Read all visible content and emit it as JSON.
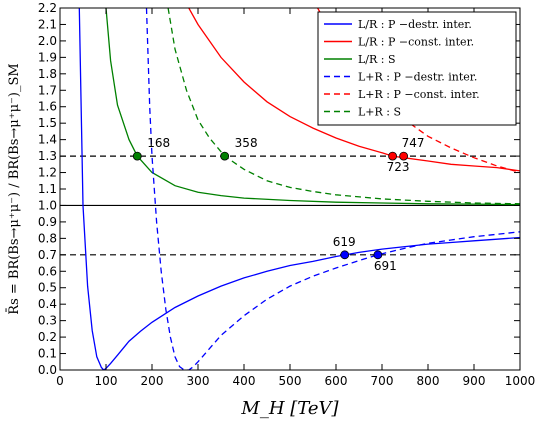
{
  "chart_data": {
    "type": "line",
    "xlabel": "M_H  [TeV]",
    "ylabel": "R̄s = BR(Bs→μ⁺μ⁻) / BR(Bs→μ⁺μ⁻)_SM",
    "xlim": [
      0,
      1000
    ],
    "ylim": [
      0.0,
      2.2
    ],
    "x_ticks": [
      "0",
      "100",
      "200",
      "300",
      "400",
      "500",
      "600",
      "700",
      "800",
      "900",
      "1000"
    ],
    "y_ticks": [
      "0.0",
      "0.1",
      "0.2",
      "0.3",
      "0.4",
      "0.5",
      "0.6",
      "0.7",
      "0.8",
      "0.9",
      "1.0",
      "1.1",
      "1.2",
      "1.3",
      "1.4",
      "1.5",
      "1.6",
      "1.7",
      "1.8",
      "1.9",
      "2.0",
      "2.1",
      "2.2"
    ],
    "legend_position": "top-right",
    "reference_lines": [
      {
        "y": 1.3,
        "style": "dashed",
        "color": "#000000"
      },
      {
        "y": 1.0,
        "style": "solid",
        "color": "#000000"
      },
      {
        "y": 0.7,
        "style": "dashed",
        "color": "#000000"
      }
    ],
    "series": [
      {
        "name": "L/R : P −destr. inter.",
        "color": "#0000ff",
        "dash": "solid",
        "x": [
          42,
          50,
          60,
          70,
          80,
          90,
          95,
          100,
          110,
          125,
          150,
          175,
          200,
          250,
          300,
          350,
          400,
          450,
          500,
          550,
          600,
          650,
          700,
          750,
          800,
          850,
          900,
          950,
          1000
        ],
        "y": [
          2.2,
          1.0,
          0.51,
          0.24,
          0.08,
          0.015,
          0.0,
          0.01,
          0.04,
          0.09,
          0.175,
          0.235,
          0.29,
          0.38,
          0.45,
          0.51,
          0.56,
          0.6,
          0.635,
          0.66,
          0.69,
          0.715,
          0.735,
          0.75,
          0.765,
          0.775,
          0.785,
          0.795,
          0.805
        ]
      },
      {
        "name": "L/R : P −const. inter.",
        "color": "#ff0000",
        "dash": "solid",
        "x": [
          280,
          300,
          350,
          400,
          450,
          500,
          550,
          600,
          650,
          700,
          723,
          747,
          800,
          850,
          900,
          950,
          1000
        ],
        "y": [
          2.2,
          2.1,
          1.9,
          1.75,
          1.63,
          1.54,
          1.47,
          1.41,
          1.36,
          1.32,
          1.3,
          1.29,
          1.27,
          1.25,
          1.24,
          1.23,
          1.21
        ]
      },
      {
        "name": "L/R : S",
        "color": "#008000",
        "dash": "solid",
        "x": [
          100,
          110,
          125,
          150,
          168,
          200,
          250,
          300,
          350,
          400,
          500,
          600,
          700,
          800,
          900,
          1000
        ],
        "y": [
          2.2,
          1.88,
          1.61,
          1.4,
          1.3,
          1.2,
          1.12,
          1.08,
          1.06,
          1.045,
          1.03,
          1.02,
          1.015,
          1.01,
          1.008,
          1.005
        ]
      },
      {
        "name": "L+R : P −destr. inter.",
        "color": "#0000ff",
        "dash": "dashed",
        "x": [
          188,
          195,
          200,
          210,
          220,
          230,
          240,
          250,
          260,
          270,
          280,
          290,
          300,
          325,
          350,
          400,
          450,
          500,
          550,
          600,
          650,
          691,
          750,
          800,
          850,
          900,
          950,
          1000
        ],
        "y": [
          2.2,
          1.6,
          1.3,
          0.9,
          0.6,
          0.37,
          0.2,
          0.08,
          0.02,
          0.0,
          0.0,
          0.02,
          0.05,
          0.13,
          0.21,
          0.33,
          0.43,
          0.51,
          0.57,
          0.62,
          0.665,
          0.7,
          0.74,
          0.77,
          0.79,
          0.81,
          0.825,
          0.84
        ]
      },
      {
        "name": "L+R : P −const. inter.",
        "color": "#ff0000",
        "dash": "dashed",
        "x": [
          560,
          600,
          650,
          700,
          750,
          800,
          850,
          900,
          950,
          1000
        ],
        "y": [
          2.2,
          2.0,
          1.8,
          1.64,
          1.52,
          1.42,
          1.35,
          1.29,
          1.24,
          1.2
        ]
      },
      {
        "name": "L+R : S",
        "color": "#008000",
        "dash": "dashed",
        "x": [
          235,
          250,
          275,
          300,
          325,
          358,
          400,
          450,
          500,
          550,
          600,
          700,
          800,
          900,
          1000
        ],
        "y": [
          2.2,
          1.95,
          1.7,
          1.52,
          1.41,
          1.3,
          1.22,
          1.15,
          1.11,
          1.085,
          1.065,
          1.04,
          1.025,
          1.015,
          1.01
        ]
      }
    ],
    "marked_points": [
      {
        "x": 168,
        "y": 1.3,
        "label": "168",
        "color": "#008000"
      },
      {
        "x": 358,
        "y": 1.3,
        "label": "358",
        "color": "#008000"
      },
      {
        "x": 723,
        "y": 1.3,
        "label": "723",
        "color": "#ff0000"
      },
      {
        "x": 747,
        "y": 1.3,
        "label": "747",
        "color": "#ff0000"
      },
      {
        "x": 619,
        "y": 0.7,
        "label": "619",
        "color": "#0000ff"
      },
      {
        "x": 691,
        "y": 0.7,
        "label": "691",
        "color": "#0000ff"
      }
    ]
  }
}
